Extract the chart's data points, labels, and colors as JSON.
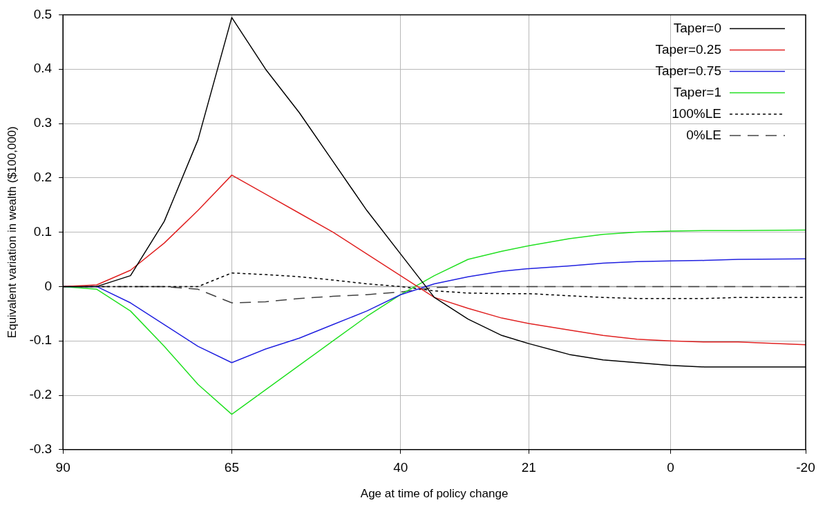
{
  "chart_data": {
    "type": "line",
    "xlabel": "Age at time of policy change",
    "ylabel": "Equivalent variation in wealth ($100,000)",
    "x": [
      90,
      85,
      80,
      75,
      70,
      65,
      60,
      55,
      50,
      45,
      40,
      35,
      30,
      25,
      21,
      15,
      10,
      5,
      0,
      -5,
      -10,
      -20
    ],
    "xlim": [
      90,
      -20
    ],
    "xticks": [
      90,
      65,
      40,
      21,
      0,
      -20
    ],
    "ylim": [
      -0.3,
      0.5
    ],
    "yticks": [
      -0.3,
      -0.2,
      -0.1,
      0,
      0.1,
      0.2,
      0.3,
      0.4,
      0.5
    ],
    "grid": true,
    "legend": "top right",
    "marker": "none",
    "ref_lines": [
      {
        "axis": "y",
        "value": 0,
        "color": "#a0a0a0",
        "line_style": "solid"
      }
    ],
    "series": [
      {
        "name": "Taper=0",
        "color": "#000000",
        "line_style": "solid",
        "values": [
          0,
          0,
          0.02,
          0.12,
          0.27,
          0.495,
          0.4,
          0.32,
          0.23,
          0.14,
          0.06,
          -0.02,
          -0.06,
          -0.09,
          -0.105,
          -0.125,
          -0.135,
          -0.14,
          -0.145,
          -0.148,
          -0.148,
          -0.148
        ]
      },
      {
        "name": "Taper=0.25",
        "color": "#e02020",
        "line_style": "solid",
        "values": [
          0,
          0.003,
          0.03,
          0.08,
          0.14,
          0.205,
          0.17,
          0.135,
          0.1,
          0.06,
          0.02,
          -0.02,
          -0.04,
          -0.058,
          -0.068,
          -0.08,
          -0.09,
          -0.097,
          -0.1,
          -0.102,
          -0.102,
          -0.107
        ]
      },
      {
        "name": "Taper=0.75",
        "color": "#2020e0",
        "line_style": "solid",
        "values": [
          0,
          0,
          -0.03,
          -0.07,
          -0.11,
          -0.14,
          -0.115,
          -0.095,
          -0.07,
          -0.045,
          -0.015,
          0.005,
          0.018,
          0.028,
          0.033,
          0.038,
          0.043,
          0.046,
          0.047,
          0.048,
          0.05,
          0.051
        ]
      },
      {
        "name": "Taper=1",
        "color": "#20e020",
        "line_style": "solid",
        "values": [
          0,
          -0.005,
          -0.045,
          -0.11,
          -0.18,
          -0.235,
          -0.19,
          -0.145,
          -0.1,
          -0.055,
          -0.015,
          0.02,
          0.05,
          0.065,
          0.075,
          0.088,
          0.096,
          0.1,
          0.102,
          0.103,
          0.103,
          0.104
        ]
      },
      {
        "name": "100%LE",
        "color": "#000000",
        "line_style": "dotted",
        "values": [
          0,
          0,
          0,
          0,
          0,
          0.025,
          0.022,
          0.018,
          0.012,
          0.005,
          0,
          -0.008,
          -0.012,
          -0.013,
          -0.013,
          -0.017,
          -0.02,
          -0.022,
          -0.022,
          -0.022,
          -0.02,
          -0.02
        ]
      },
      {
        "name": "0%LE",
        "color": "#404040",
        "line_style": "dashed",
        "values": [
          0,
          0,
          0,
          0,
          -0.005,
          -0.03,
          -0.028,
          -0.022,
          -0.018,
          -0.015,
          -0.01,
          -0.002,
          0,
          0,
          0,
          0,
          0,
          0,
          0,
          0,
          0,
          0
        ]
      }
    ]
  }
}
